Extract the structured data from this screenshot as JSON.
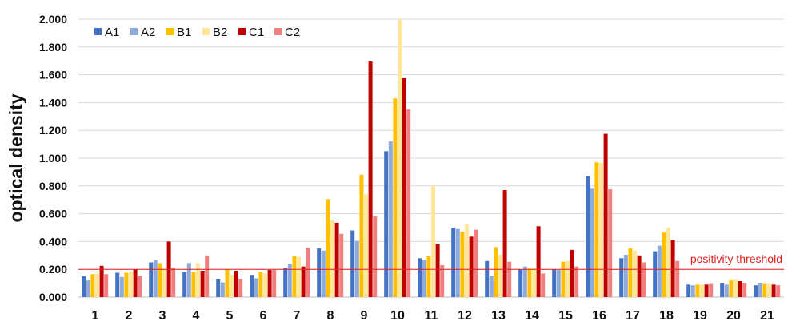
{
  "chart_data": {
    "type": "bar",
    "ylabel": "optical density",
    "ylim": [
      0,
      2.0
    ],
    "yticks": [
      "0.000",
      "0.200",
      "0.400",
      "0.600",
      "0.800",
      "1.000",
      "1.200",
      "1.400",
      "1.600",
      "1.800",
      "2.000"
    ],
    "grid": true,
    "legend_position": "top-left",
    "categories": [
      "1",
      "2",
      "3",
      "4",
      "5",
      "6",
      "7",
      "8",
      "9",
      "10",
      "11",
      "12",
      "13",
      "14",
      "15",
      "16",
      "17",
      "18",
      "19",
      "20",
      "21"
    ],
    "series": [
      {
        "name": "A1",
        "color": "#4472C4",
        "values": [
          0.15,
          0.175,
          0.25,
          0.18,
          0.13,
          0.16,
          0.21,
          0.35,
          0.48,
          1.05,
          0.28,
          0.5,
          0.26,
          0.2,
          0.2,
          0.87,
          0.28,
          0.33,
          0.09,
          0.1,
          0.085
        ]
      },
      {
        "name": "A2",
        "color": "#8FAADC",
        "values": [
          0.12,
          0.145,
          0.265,
          0.245,
          0.105,
          0.135,
          0.24,
          0.335,
          0.405,
          1.12,
          0.27,
          0.49,
          0.155,
          0.22,
          0.195,
          0.78,
          0.305,
          0.37,
          0.085,
          0.09,
          0.1
        ]
      },
      {
        "name": "B1",
        "color": "#FFC000",
        "values": [
          0.165,
          0.175,
          0.245,
          0.18,
          0.2,
          0.18,
          0.295,
          0.705,
          0.88,
          1.43,
          0.295,
          0.47,
          0.36,
          0.205,
          0.255,
          0.97,
          0.35,
          0.465,
          0.09,
          0.12,
          0.095
        ]
      },
      {
        "name": "B2",
        "color": "#FFE699",
        "values": [
          0.17,
          0.185,
          0.205,
          0.245,
          0.16,
          0.17,
          0.29,
          0.555,
          0.74,
          2.0,
          0.8,
          0.53,
          0.305,
          0.21,
          0.26,
          0.965,
          0.335,
          0.5,
          0.09,
          0.125,
          0.095
        ]
      },
      {
        "name": "C1",
        "color": "#C00000",
        "values": [
          0.225,
          0.2,
          0.4,
          0.19,
          0.19,
          0.195,
          0.22,
          0.535,
          1.695,
          1.575,
          0.38,
          0.435,
          0.77,
          0.51,
          0.34,
          1.175,
          0.3,
          0.41,
          0.09,
          0.115,
          0.09
        ]
      },
      {
        "name": "C2",
        "color": "#F08080",
        "values": [
          0.165,
          0.155,
          0.21,
          0.3,
          0.13,
          0.195,
          0.355,
          0.455,
          0.58,
          1.35,
          0.23,
          0.485,
          0.255,
          0.17,
          0.22,
          0.775,
          0.25,
          0.26,
          0.095,
          0.1,
          0.085
        ]
      }
    ],
    "threshold": {
      "value": 0.2,
      "label": "positivity threshold",
      "color": "#E02020"
    }
  }
}
